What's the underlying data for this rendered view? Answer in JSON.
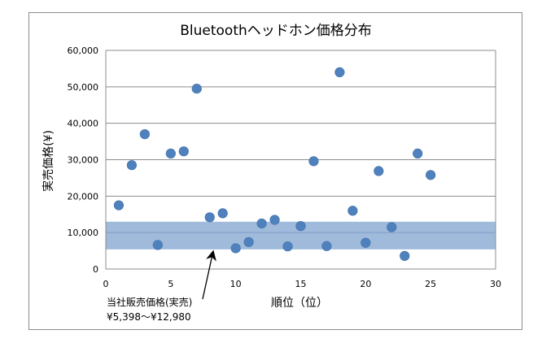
{
  "chart_data": {
    "type": "scatter",
    "title": "Bluetoothヘッドホン価格分布",
    "xlabel": "順位（位）",
    "ylabel": "実売価格(¥)",
    "xlim": [
      0,
      30
    ],
    "ylim": [
      0,
      60000
    ],
    "x_ticks": [
      "0",
      "5",
      "10",
      "15",
      "20",
      "25",
      "30"
    ],
    "y_ticks": [
      "0",
      "10,000",
      "20,000",
      "30,000",
      "40,000",
      "50,000",
      "60,000"
    ],
    "grid": true,
    "legend": "none",
    "marker_color": "#4f81bd",
    "band": {
      "low": 5398,
      "high": 12980,
      "center": 10000,
      "color": "#95b3d7"
    },
    "annotation": {
      "line1": "当社販売価格(実売)",
      "line2": "¥5,398～¥12,980",
      "arrow_target": [
        8.2,
        5398
      ]
    },
    "points": [
      {
        "x": 1,
        "y": 17500
      },
      {
        "x": 2,
        "y": 28500
      },
      {
        "x": 3,
        "y": 37000
      },
      {
        "x": 4,
        "y": 6600
      },
      {
        "x": 5,
        "y": 31700
      },
      {
        "x": 6,
        "y": 32300
      },
      {
        "x": 7,
        "y": 49500
      },
      {
        "x": 8,
        "y": 14200
      },
      {
        "x": 9,
        "y": 15300
      },
      {
        "x": 10,
        "y": 5700
      },
      {
        "x": 11,
        "y": 7400
      },
      {
        "x": 12,
        "y": 12500
      },
      {
        "x": 13,
        "y": 13500
      },
      {
        "x": 14,
        "y": 6200
      },
      {
        "x": 15,
        "y": 11800
      },
      {
        "x": 16,
        "y": 29600
      },
      {
        "x": 17,
        "y": 6300
      },
      {
        "x": 18,
        "y": 54000
      },
      {
        "x": 19,
        "y": 16000
      },
      {
        "x": 20,
        "y": 7200
      },
      {
        "x": 21,
        "y": 26900
      },
      {
        "x": 22,
        "y": 11500
      },
      {
        "x": 23,
        "y": 3600
      },
      {
        "x": 24,
        "y": 31700
      },
      {
        "x": 25,
        "y": 25800
      }
    ]
  }
}
